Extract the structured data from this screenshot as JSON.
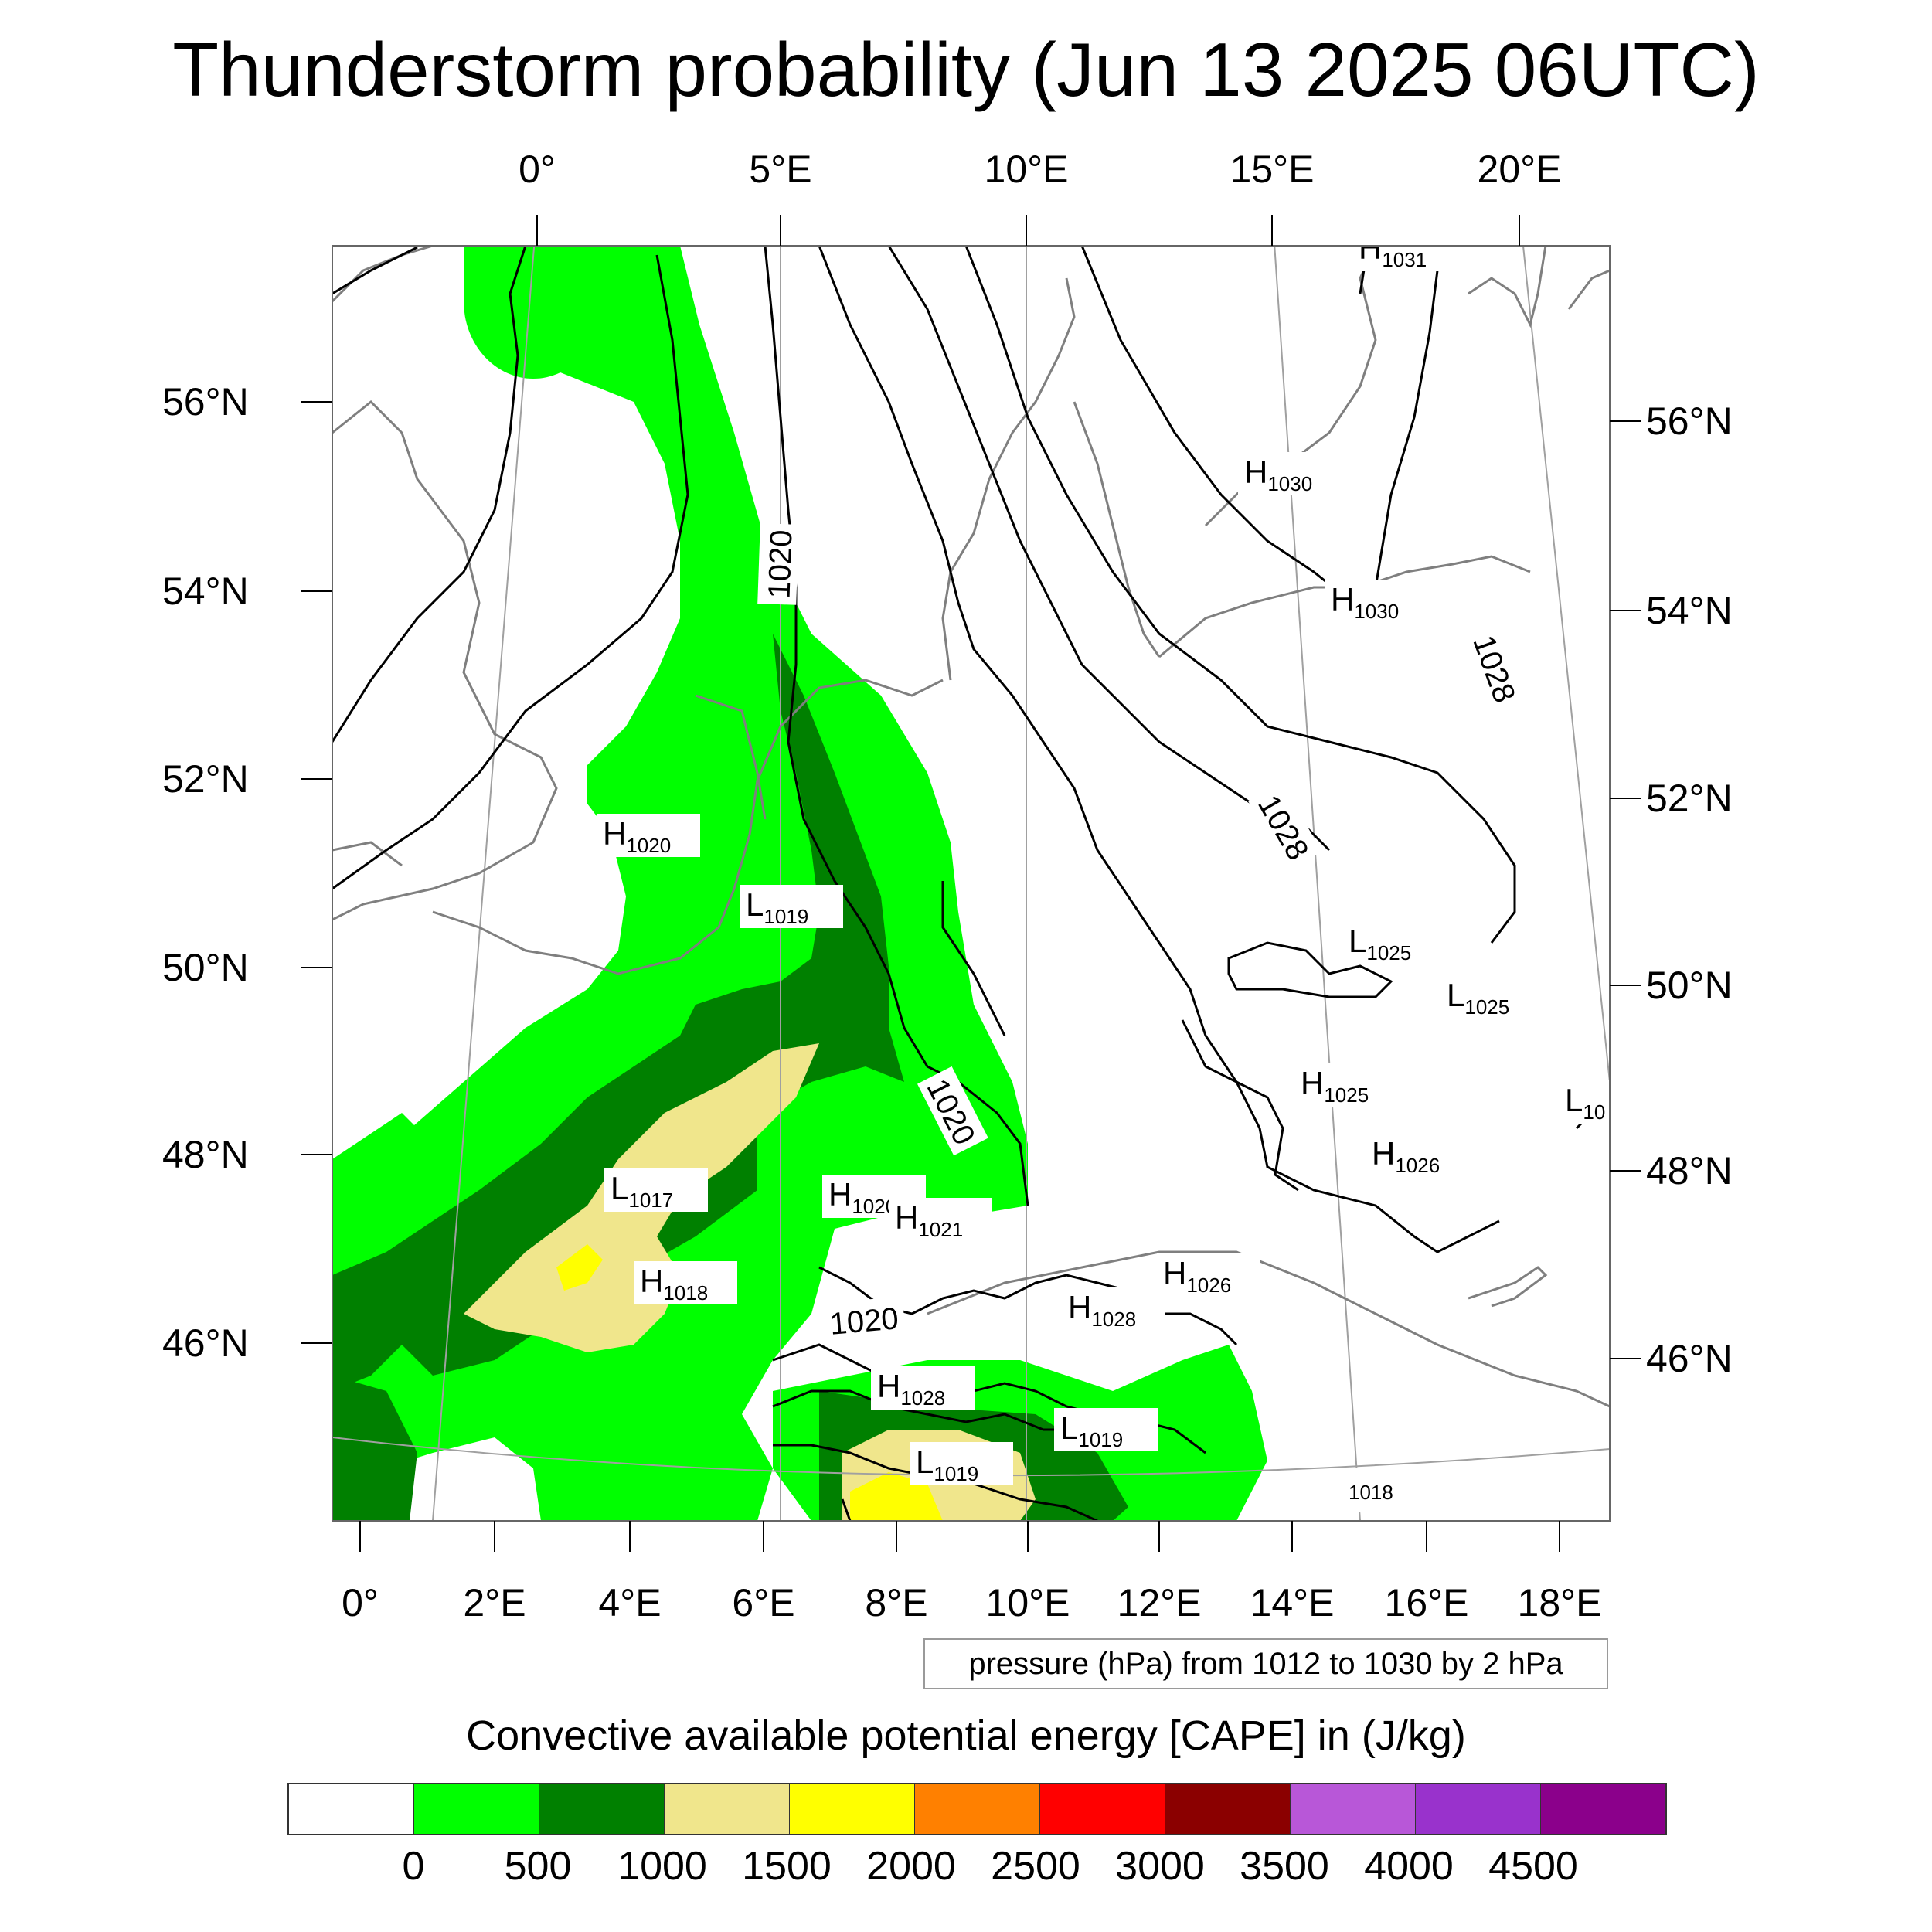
{
  "title": "Thunderstorm probability (Jun 13 2025 06UTC)",
  "axes": {
    "top_lon": [
      "0°",
      "5°E",
      "10°E",
      "15°E",
      "20°E"
    ],
    "bottom_lon": [
      "0°",
      "2°E",
      "4°E",
      "6°E",
      "8°E",
      "10°E",
      "12°E",
      "14°E",
      "16°E",
      "18°E"
    ],
    "left_lat": [
      "56°N",
      "54°N",
      "52°N",
      "50°N",
      "48°N",
      "46°N"
    ],
    "right_lat": [
      "56°N",
      "54°N",
      "52°N",
      "50°N",
      "48°N",
      "46°N"
    ]
  },
  "pressure_note": "pressure (hPa) from 1012 to 1030 by 2 hPa",
  "contour_labels": [
    "1020",
    "1020",
    "1020",
    "1028",
    "1028"
  ],
  "pressure_centers": [
    {
      "type": "H",
      "value": "1031"
    },
    {
      "type": "H",
      "value": "1030"
    },
    {
      "type": "H",
      "value": "1030"
    },
    {
      "type": "H",
      "value": "1020"
    },
    {
      "type": "L",
      "value": "1019"
    },
    {
      "type": "L",
      "value": "1025"
    },
    {
      "type": "L",
      "value": "1025"
    },
    {
      "type": "H",
      "value": "1025"
    },
    {
      "type": "L",
      "value": "10"
    },
    {
      "type": "H",
      "value": "1026"
    },
    {
      "type": "L",
      "value": "1017"
    },
    {
      "type": "H",
      "value": "1020"
    },
    {
      "type": "H",
      "value": "1021"
    },
    {
      "type": "H",
      "value": "1018"
    },
    {
      "type": "H",
      "value": "1026"
    },
    {
      "type": "H",
      "value": "1028"
    },
    {
      "type": "H",
      "value": "1028"
    },
    {
      "type": "L",
      "value": "1019"
    },
    {
      "type": "L",
      "value": "1019"
    },
    {
      "type": "",
      "value": "1018"
    }
  ],
  "colorbar": {
    "title": "Convective available potential energy [CAPE] in (J/kg)",
    "colors": [
      "#ffffff",
      "#00ff00",
      "#008000",
      "#f0e68c",
      "#ffff00",
      "#ff8000",
      "#ff0000",
      "#8b0000",
      "#b857d8",
      "#9932cc",
      "#8b008b"
    ],
    "labels": [
      "0",
      "500",
      "1000",
      "1500",
      "2000",
      "2500",
      "3000",
      "3500",
      "4000",
      "4500"
    ]
  },
  "colors": {
    "coast": "#7f7f7f",
    "isobar": "#000000",
    "grid": "#a0a0a0"
  }
}
